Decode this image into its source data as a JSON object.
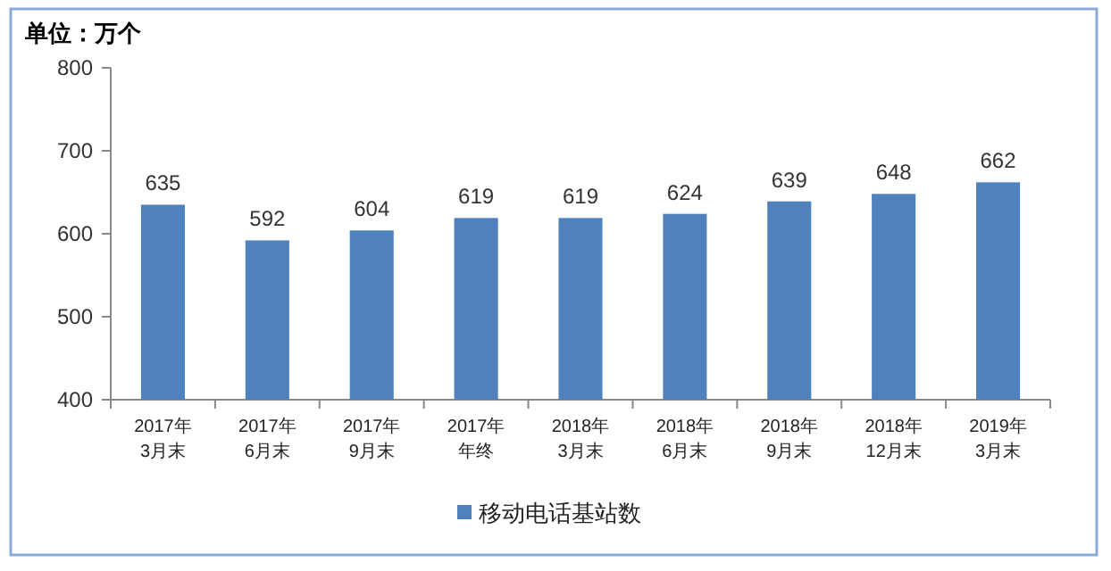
{
  "chart_data": {
    "type": "bar",
    "ylabel": "单位：万个",
    "categories": [
      "2017年3月末",
      "2017年6月末",
      "2017年9月末",
      "2017年年终",
      "2018年3月末",
      "2018年6月末",
      "2018年9月末",
      "2018年12月末",
      "2019年3月末"
    ],
    "series": [
      {
        "name": "移动电话基站数",
        "color": "#4f81bd",
        "values": [
          635,
          592,
          604,
          619,
          619,
          624,
          639,
          648,
          662
        ]
      }
    ],
    "ylim": [
      400,
      800
    ],
    "yticks": [
      400,
      500,
      600,
      700,
      800
    ],
    "data_labels": true,
    "legend": "bottom",
    "grid": false
  }
}
